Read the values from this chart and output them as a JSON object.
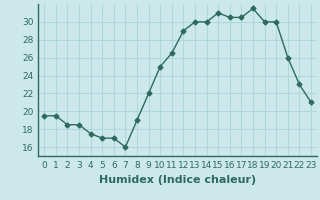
{
  "x": [
    0,
    1,
    2,
    3,
    4,
    5,
    6,
    7,
    8,
    9,
    10,
    11,
    12,
    13,
    14,
    15,
    16,
    17,
    18,
    19,
    20,
    21,
    22,
    23
  ],
  "y": [
    19.5,
    19.5,
    18.5,
    18.5,
    17.5,
    17.0,
    17.0,
    16.0,
    19.0,
    22.0,
    25.0,
    26.5,
    29.0,
    30.0,
    30.0,
    31.0,
    30.5,
    30.5,
    31.5,
    30.0,
    30.0,
    26.0,
    23.0,
    21.0
  ],
  "line_color": "#2e6b5e",
  "marker": "D",
  "marker_size": 2.5,
  "bg_color": "#cce8ea",
  "grid_color": "#b0d8dc",
  "xlabel": "Humidex (Indice chaleur)",
  "ylabel": "",
  "title": "",
  "xlim": [
    -0.5,
    23.5
  ],
  "ylim": [
    15.0,
    32.0
  ],
  "yticks": [
    16,
    18,
    20,
    22,
    24,
    26,
    28,
    30
  ],
  "xticks": [
    0,
    1,
    2,
    3,
    4,
    5,
    6,
    7,
    8,
    9,
    10,
    11,
    12,
    13,
    14,
    15,
    16,
    17,
    18,
    19,
    20,
    21,
    22,
    23
  ],
  "tick_fontsize": 6.5,
  "xlabel_fontsize": 8
}
